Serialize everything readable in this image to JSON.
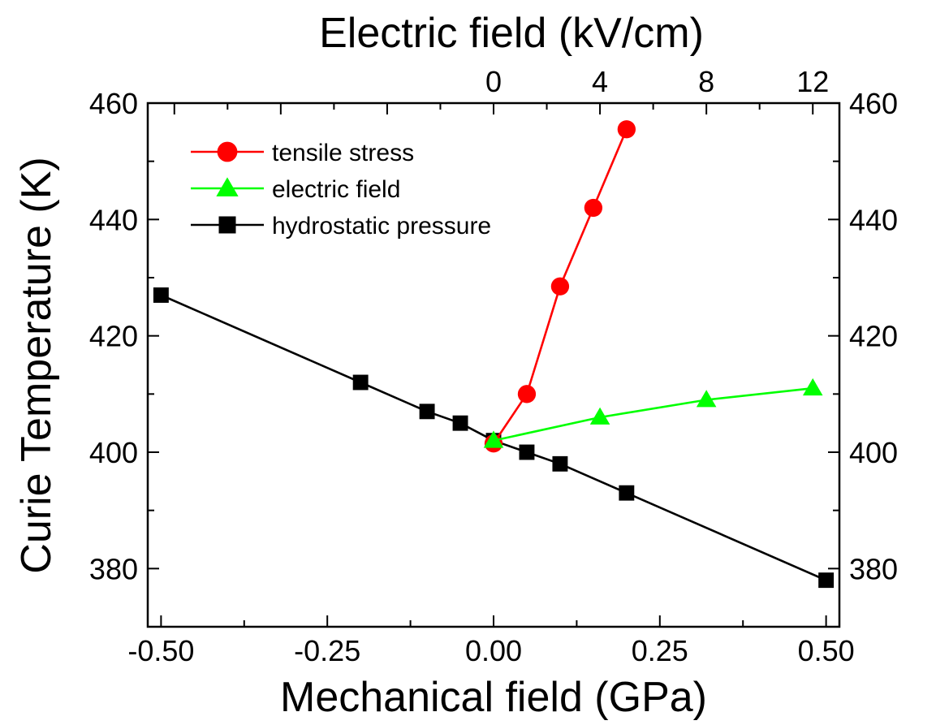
{
  "chart_data": {
    "type": "line",
    "title": "",
    "xlabel": "Mechanical field (GPa)",
    "x2label": "Electric field (kV/cm)",
    "ylabel": "Curie Temperature (K)",
    "xlim": [
      -0.52,
      0.52
    ],
    "ylim": [
      370,
      460
    ],
    "x_ticks": [
      -0.5,
      -0.25,
      0.0,
      0.25,
      0.5
    ],
    "x_tick_labels": [
      "-0.50",
      "-0.25",
      "0.00",
      "0.25",
      "0.50"
    ],
    "x2_ticks": [
      0,
      4,
      8,
      12
    ],
    "x2_tick_labels": [
      "0",
      "4",
      "8",
      "12"
    ],
    "y_ticks": [
      380,
      400,
      420,
      440,
      460
    ],
    "y_tick_labels": [
      "380",
      "400",
      "420",
      "440",
      "460"
    ],
    "legend_position": "top-left",
    "grid": false,
    "series": [
      {
        "name": "tensile stress",
        "axis": "mechanical",
        "color": "#ff0000",
        "marker": "circle",
        "x": [
          0.0,
          0.05,
          0.1,
          0.15,
          0.2
        ],
        "y": [
          401.5,
          410,
          428.5,
          442,
          455.5
        ]
      },
      {
        "name": "electric field",
        "axis": "electric",
        "color": "#00ff00",
        "marker": "triangle",
        "x": [
          0,
          4,
          8,
          12
        ],
        "y": [
          402,
          406,
          409,
          411
        ]
      },
      {
        "name": "hydrostatic pressure",
        "axis": "mechanical",
        "color": "#000000",
        "marker": "square",
        "x": [
          -0.5,
          -0.2,
          -0.1,
          -0.05,
          0.0,
          0.05,
          0.1,
          0.2,
          0.5
        ],
        "y": [
          427,
          412,
          407,
          405,
          402,
          400,
          398,
          393,
          378
        ]
      }
    ]
  }
}
